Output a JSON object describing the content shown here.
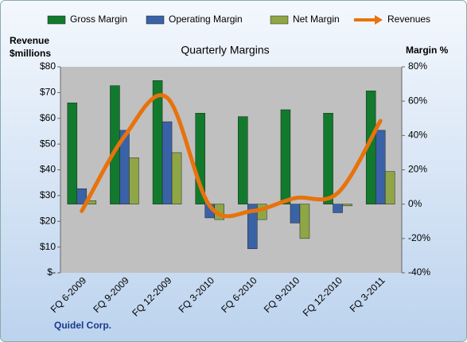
{
  "chart_data": {
    "type": "bar_line",
    "title": "Quarterly Margins",
    "ylabel_lines": [
      "Revenue",
      "$millions"
    ],
    "y2label": "Margin %",
    "annotation": "Quidel Corp.",
    "categories": [
      "FQ 6-2009",
      "FQ 9-2009",
      "FQ 12-2009",
      "FQ 3-2010",
      "FQ 6-2010",
      "FQ 9-2010",
      "FQ 12-2010",
      "FQ 3-2011"
    ],
    "series": [
      {
        "name": "Gross Margin",
        "color": "#117a2c",
        "axis": "y2",
        "type": "bar",
        "values": [
          59,
          69,
          72,
          53,
          51,
          55,
          53,
          66
        ]
      },
      {
        "name": "Operating Margin",
        "color": "#3a62a6",
        "axis": "y2",
        "type": "bar",
        "values": [
          9,
          43,
          48,
          -8,
          -26,
          -11,
          -5,
          43
        ]
      },
      {
        "name": "Net Margin",
        "color": "#8ea646",
        "axis": "y2",
        "type": "bar",
        "values": [
          2,
          27,
          30,
          -9,
          -9,
          -20,
          -1,
          19
        ]
      },
      {
        "name": "Revenues",
        "color": "#e8720c",
        "axis": "y",
        "type": "line",
        "values": [
          24,
          53,
          68,
          26,
          24,
          29,
          31,
          59
        ]
      }
    ],
    "ylim": [
      0,
      80
    ],
    "yticks": [
      {
        "value": 0,
        "label": "$-"
      },
      {
        "value": 10,
        "label": "$10"
      },
      {
        "value": 20,
        "label": "$20"
      },
      {
        "value": 30,
        "label": "$30"
      },
      {
        "value": 40,
        "label": "$40"
      },
      {
        "value": 50,
        "label": "$50"
      },
      {
        "value": 60,
        "label": "$60"
      },
      {
        "value": 70,
        "label": "$70"
      },
      {
        "value": 80,
        "label": "$80"
      }
    ],
    "y2lim": [
      -40,
      80
    ],
    "y2ticks": [
      {
        "value": -40,
        "label": "-40%"
      },
      {
        "value": -20,
        "label": "-20%"
      },
      {
        "value": 0,
        "label": "0%"
      },
      {
        "value": 20,
        "label": "20%"
      },
      {
        "value": 40,
        "label": "40%"
      },
      {
        "value": 60,
        "label": "60%"
      },
      {
        "value": 80,
        "label": "80%"
      }
    ]
  }
}
